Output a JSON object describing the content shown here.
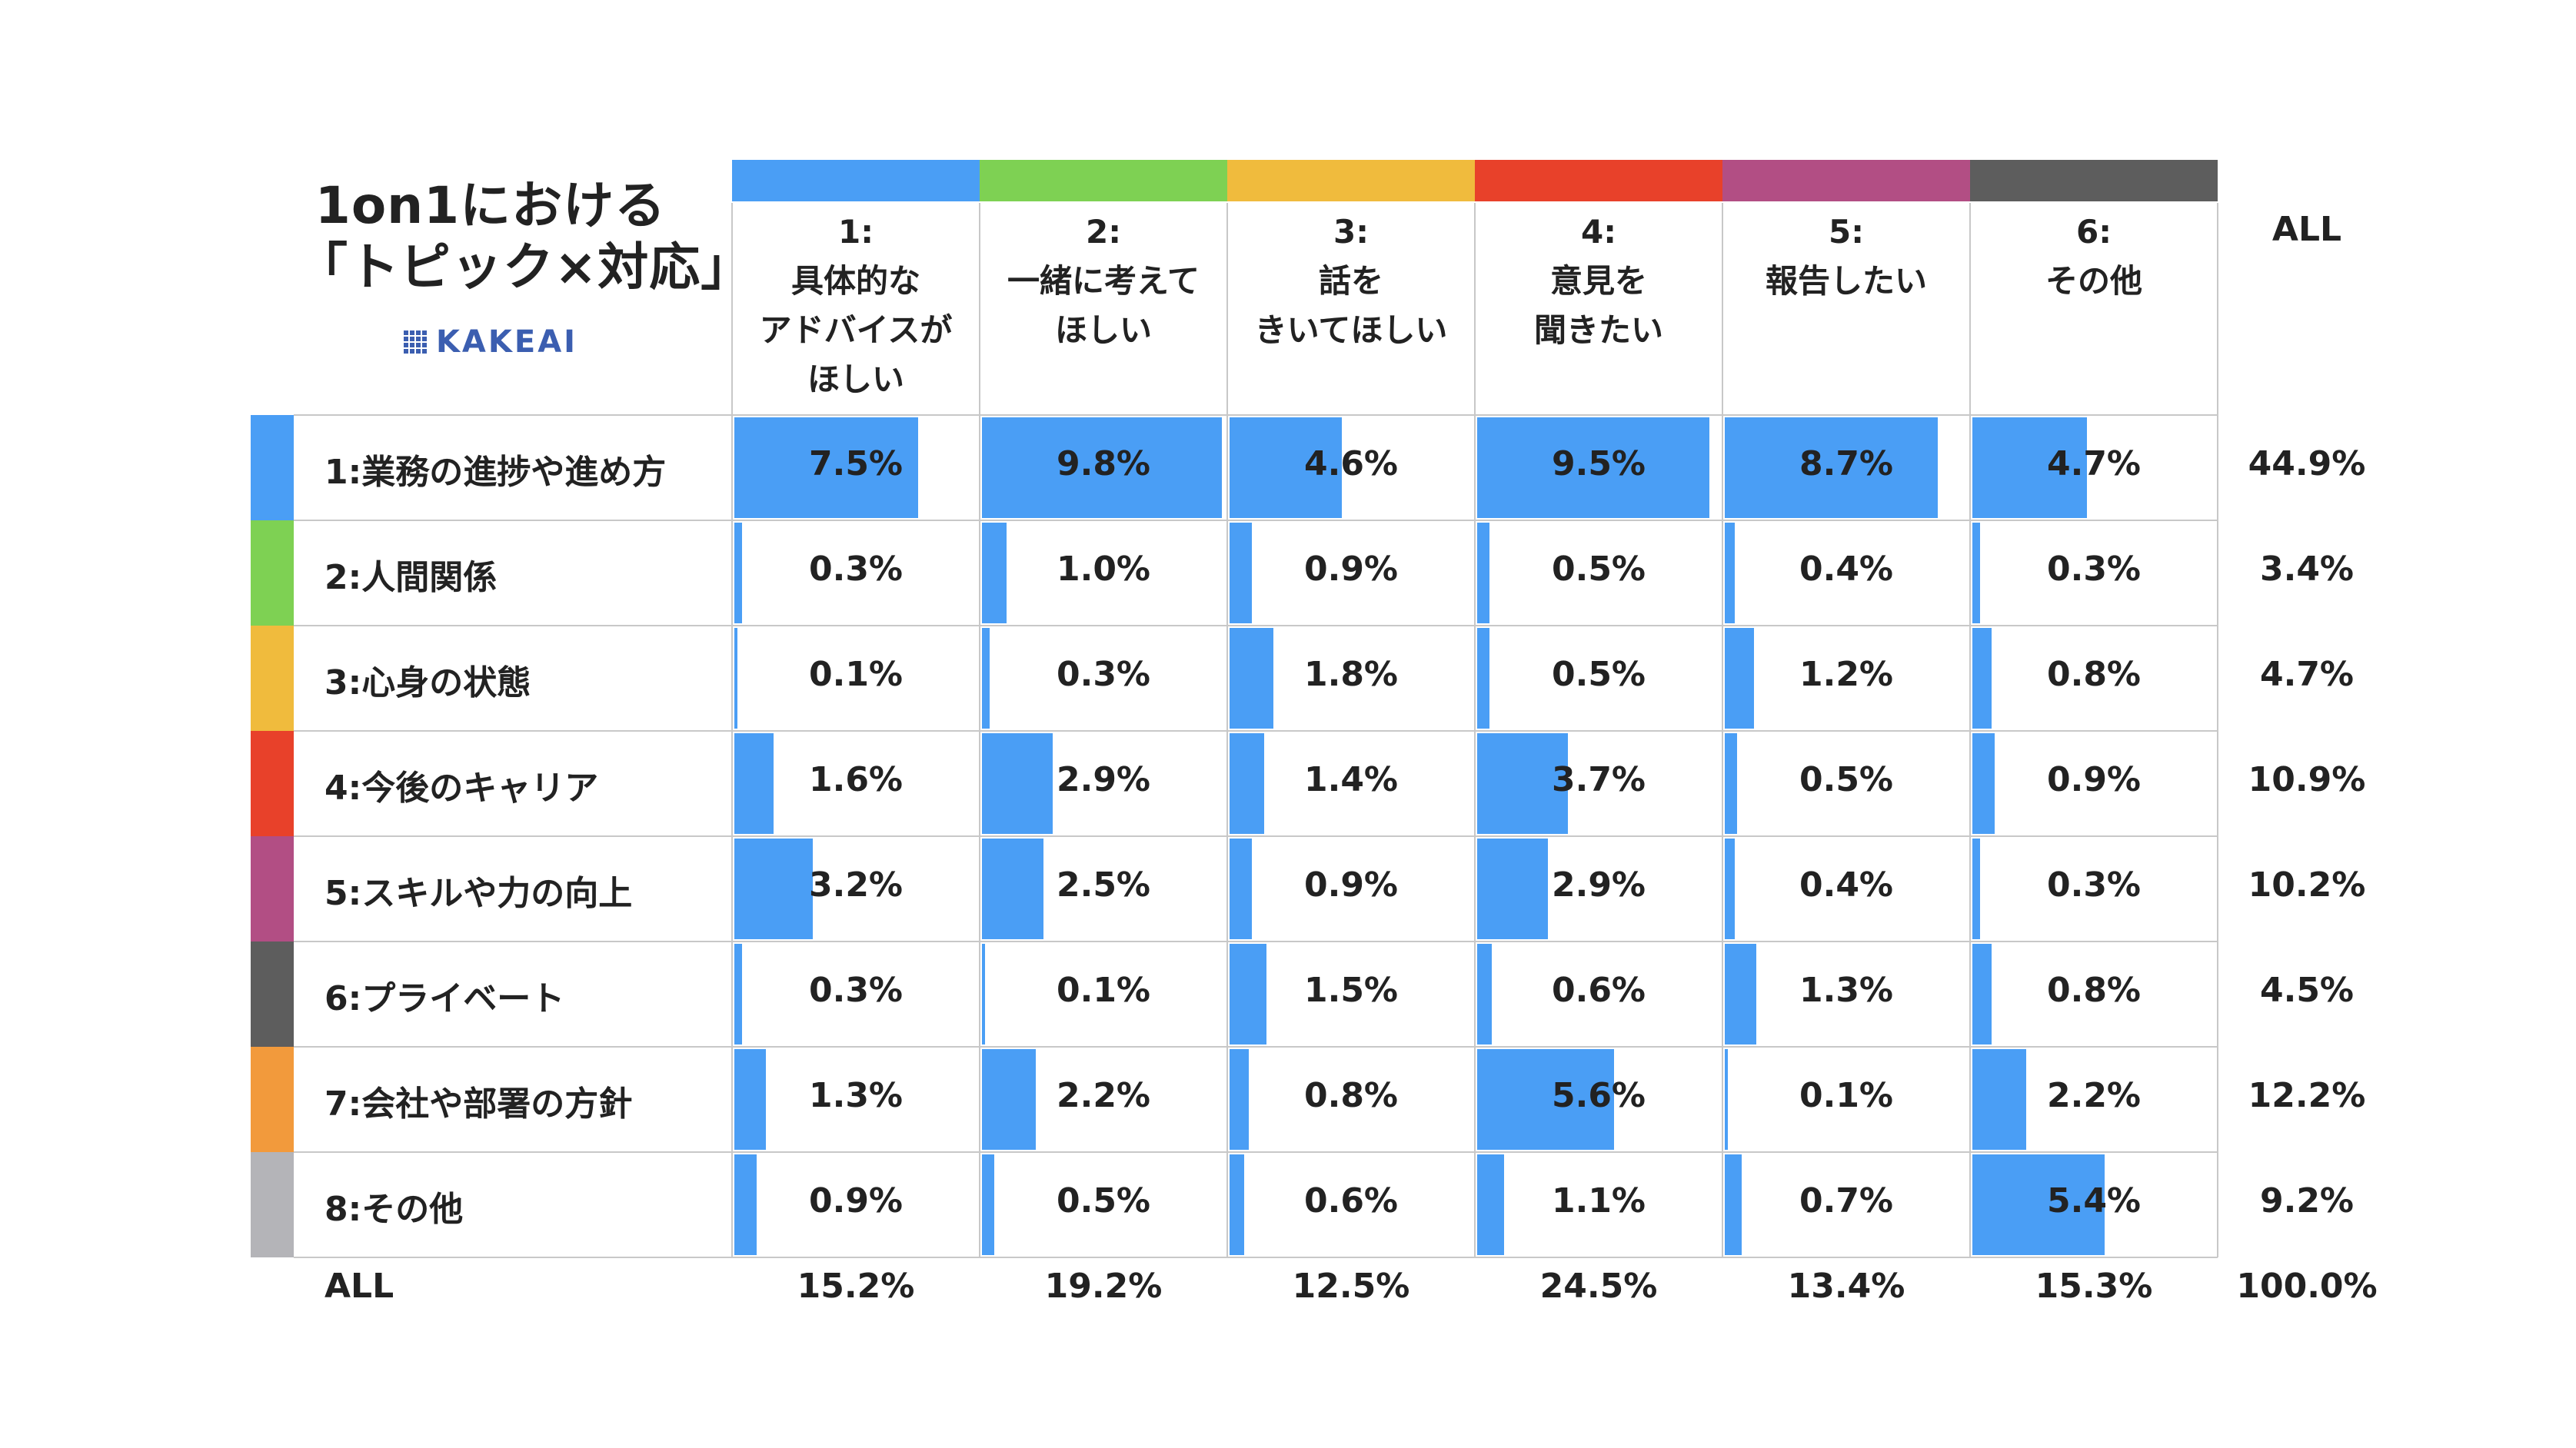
{
  "title": {
    "line1": "1on1における",
    "line2": "「トピック×対応」",
    "brand": "KAKEAI"
  },
  "chart_data": {
    "type": "table",
    "columns": [
      {
        "label": [
          "1:",
          "具体的な",
          "アドバイスが",
          "ほしい"
        ],
        "color": "#4a9ef5",
        "total": "15.2%"
      },
      {
        "label": [
          "2:",
          "一緒に考えて",
          "ほしい"
        ],
        "color": "#7ed153",
        "total": "19.2%"
      },
      {
        "label": [
          "3:",
          "話を",
          "きいてほしい"
        ],
        "color": "#f0bb3d",
        "total": "12.5%"
      },
      {
        "label": [
          "4:",
          "意見を",
          "聞きたい"
        ],
        "color": "#e8412a",
        "total": "24.5%"
      },
      {
        "label": [
          "5:",
          "報告したい"
        ],
        "color": "#b24e84",
        "total": "13.4%"
      },
      {
        "label": [
          "6:",
          "その他"
        ],
        "color": "#5d5d5d",
        "total": "15.3%"
      }
    ],
    "all_label": "ALL",
    "rows": [
      {
        "label": "1:業務の進捗や進め方",
        "color": "#4a9ef5",
        "values": [
          "7.5%",
          "9.8%",
          "4.6%",
          "9.5%",
          "8.7%",
          "4.7%"
        ],
        "total": "44.9%"
      },
      {
        "label": "2:人間関係",
        "color": "#7ed153",
        "values": [
          "0.3%",
          "1.0%",
          "0.9%",
          "0.5%",
          "0.4%",
          "0.3%"
        ],
        "total": "3.4%"
      },
      {
        "label": "3:心身の状態",
        "color": "#f0bb3d",
        "values": [
          "0.1%",
          "0.3%",
          "1.8%",
          "0.5%",
          "1.2%",
          "0.8%"
        ],
        "total": "4.7%"
      },
      {
        "label": "4:今後のキャリア",
        "color": "#e8412a",
        "values": [
          "1.6%",
          "2.9%",
          "1.4%",
          "3.7%",
          "0.5%",
          "0.9%"
        ],
        "total": "10.9%"
      },
      {
        "label": "5:スキルや力の向上",
        "color": "#b24e84",
        "values": [
          "3.2%",
          "2.5%",
          "0.9%",
          "2.9%",
          "0.4%",
          "0.3%"
        ],
        "total": "10.2%"
      },
      {
        "label": "6:プライベート",
        "color": "#5d5d5d",
        "values": [
          "0.3%",
          "0.1%",
          "1.5%",
          "0.6%",
          "1.3%",
          "0.8%"
        ],
        "total": "4.5%"
      },
      {
        "label": "7:会社や部署の方針",
        "color": "#f29a3c",
        "values": [
          "1.3%",
          "2.2%",
          "0.8%",
          "5.6%",
          "0.1%",
          "2.2%"
        ],
        "total": "12.2%"
      },
      {
        "label": "8:その他",
        "color": "#b4b4b8",
        "values": [
          "0.9%",
          "0.5%",
          "0.6%",
          "1.1%",
          "0.7%",
          "5.4%"
        ],
        "total": "9.2%"
      }
    ],
    "grand_total": "100.0%",
    "bar_scale_max": 10.0
  }
}
